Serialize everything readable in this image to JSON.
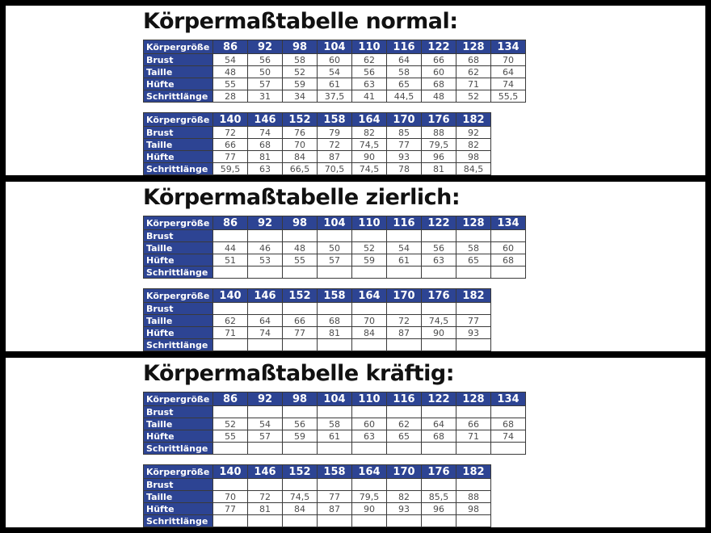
{
  "colors": {
    "header_blue": "#2d4493",
    "value_text": "#4d4d4d",
    "frame_black": "#000000"
  },
  "row_header": "Körpergröße",
  "sections": [
    {
      "title": "Körpermaßtabelle normal:",
      "tables": [
        {
          "sizes": [
            "86",
            "92",
            "98",
            "104",
            "110",
            "116",
            "122",
            "128",
            "134"
          ],
          "rows": [
            {
              "label": "Brust",
              "values": [
                "54",
                "56",
                "58",
                "60",
                "62",
                "64",
                "66",
                "68",
                "70"
              ]
            },
            {
              "label": "Taille",
              "values": [
                "48",
                "50",
                "52",
                "54",
                "56",
                "58",
                "60",
                "62",
                "64"
              ]
            },
            {
              "label": "Hüfte",
              "values": [
                "55",
                "57",
                "59",
                "61",
                "63",
                "65",
                "68",
                "71",
                "74"
              ]
            },
            {
              "label": "Schrittlänge",
              "values": [
                "28",
                "31",
                "34",
                "37,5",
                "41",
                "44,5",
                "48",
                "52",
                "55,5"
              ]
            }
          ]
        },
        {
          "sizes": [
            "140",
            "146",
            "152",
            "158",
            "164",
            "170",
            "176",
            "182"
          ],
          "rows": [
            {
              "label": "Brust",
              "values": [
                "72",
                "74",
                "76",
                "79",
                "82",
                "85",
                "88",
                "92"
              ]
            },
            {
              "label": "Taille",
              "values": [
                "66",
                "68",
                "70",
                "72",
                "74,5",
                "77",
                "79,5",
                "82"
              ]
            },
            {
              "label": "Hüfte",
              "values": [
                "77",
                "81",
                "84",
                "87",
                "90",
                "93",
                "96",
                "98"
              ]
            },
            {
              "label": "Schrittlänge",
              "values": [
                "59,5",
                "63",
                "66,5",
                "70,5",
                "74,5",
                "78",
                "81",
                "84,5"
              ]
            }
          ]
        }
      ]
    },
    {
      "title": "Körpermaßtabelle zierlich:",
      "tables": [
        {
          "sizes": [
            "86",
            "92",
            "98",
            "104",
            "110",
            "116",
            "122",
            "128",
            "134"
          ],
          "rows": [
            {
              "label": "Brust",
              "values": [
                "",
                "",
                "",
                "",
                "",
                "",
                "",
                "",
                ""
              ]
            },
            {
              "label": "Taille",
              "values": [
                "44",
                "46",
                "48",
                "50",
                "52",
                "54",
                "56",
                "58",
                "60"
              ]
            },
            {
              "label": "Hüfte",
              "values": [
                "51",
                "53",
                "55",
                "57",
                "59",
                "61",
                "63",
                "65",
                "68"
              ]
            },
            {
              "label": "Schrittlänge",
              "values": [
                "",
                "",
                "",
                "",
                "",
                "",
                "",
                "",
                ""
              ]
            }
          ]
        },
        {
          "sizes": [
            "140",
            "146",
            "152",
            "158",
            "164",
            "170",
            "176",
            "182"
          ],
          "rows": [
            {
              "label": "Brust",
              "values": [
                "",
                "",
                "",
                "",
                "",
                "",
                "",
                ""
              ]
            },
            {
              "label": "Taille",
              "values": [
                "62",
                "64",
                "66",
                "68",
                "70",
                "72",
                "74,5",
                "77"
              ]
            },
            {
              "label": "Hüfte",
              "values": [
                "71",
                "74",
                "77",
                "81",
                "84",
                "87",
                "90",
                "93"
              ]
            },
            {
              "label": "Schrittlänge",
              "values": [
                "",
                "",
                "",
                "",
                "",
                "",
                "",
                ""
              ]
            }
          ]
        }
      ]
    },
    {
      "title": "Körpermaßtabelle kräftig:",
      "tables": [
        {
          "sizes": [
            "86",
            "92",
            "98",
            "104",
            "110",
            "116",
            "122",
            "128",
            "134"
          ],
          "rows": [
            {
              "label": "Brust",
              "values": [
                "",
                "",
                "",
                "",
                "",
                "",
                "",
                "",
                ""
              ]
            },
            {
              "label": "Taille",
              "values": [
                "52",
                "54",
                "56",
                "58",
                "60",
                "62",
                "64",
                "66",
                "68"
              ]
            },
            {
              "label": "Hüfte",
              "values": [
                "55",
                "57",
                "59",
                "61",
                "63",
                "65",
                "68",
                "71",
                "74"
              ]
            },
            {
              "label": "Schrittlänge",
              "values": [
                "",
                "",
                "",
                "",
                "",
                "",
                "",
                "",
                ""
              ]
            }
          ]
        },
        {
          "sizes": [
            "140",
            "146",
            "152",
            "158",
            "164",
            "170",
            "176",
            "182"
          ],
          "rows": [
            {
              "label": "Brust",
              "values": [
                "",
                "",
                "",
                "",
                "",
                "",
                "",
                ""
              ]
            },
            {
              "label": "Taille",
              "values": [
                "70",
                "72",
                "74,5",
                "77",
                "79,5",
                "82",
                "85,5",
                "88"
              ]
            },
            {
              "label": "Hüfte",
              "values": [
                "77",
                "81",
                "84",
                "87",
                "90",
                "93",
                "96",
                "98"
              ]
            },
            {
              "label": "Schrittlänge",
              "values": [
                "",
                "",
                "",
                "",
                "",
                "",
                "",
                ""
              ]
            }
          ]
        }
      ]
    }
  ]
}
